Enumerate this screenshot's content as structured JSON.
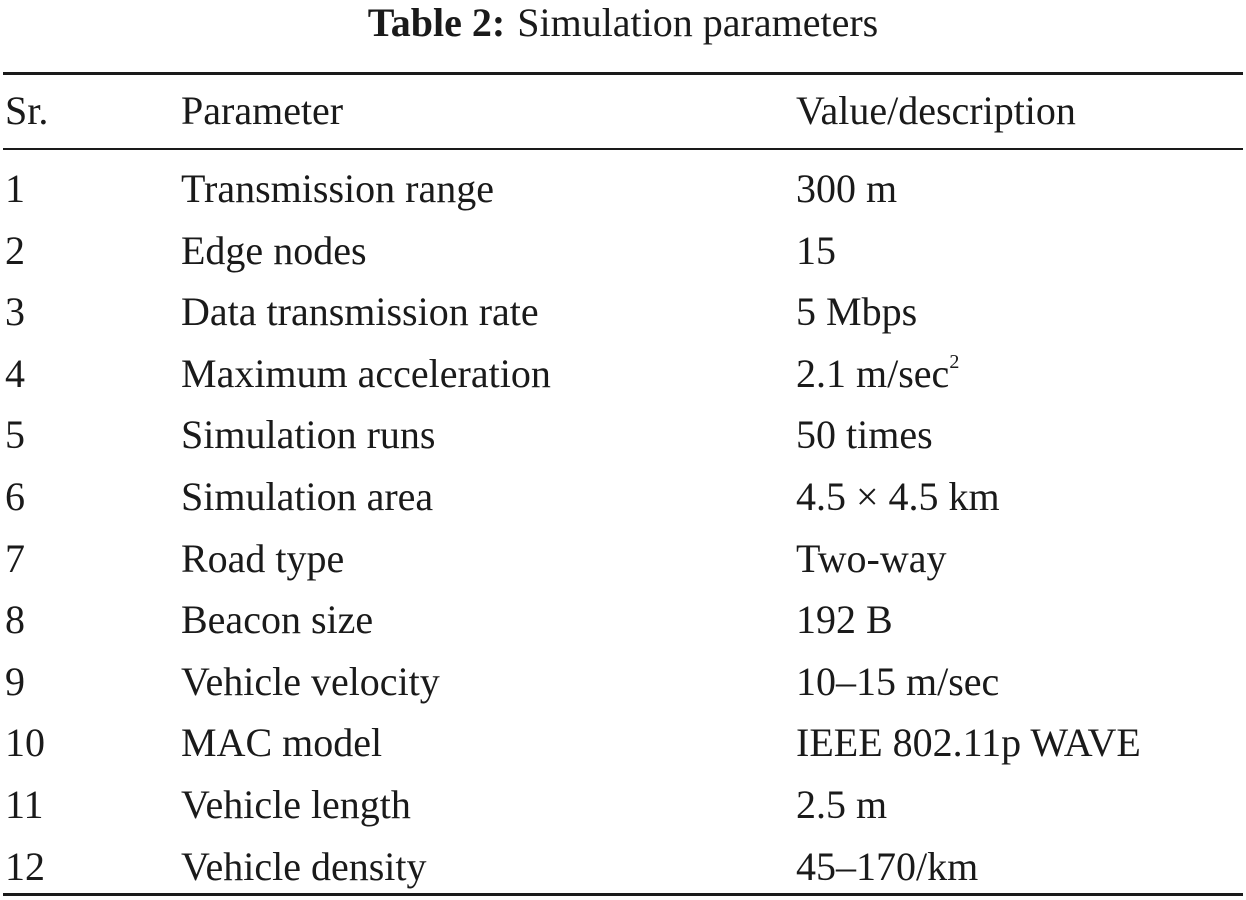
{
  "caption": {
    "label": "Table 2:",
    "title": "Simulation parameters"
  },
  "table": {
    "headers": {
      "sr": "Sr.",
      "parameter": "Parameter",
      "value": "Value/description"
    },
    "rows": [
      {
        "sr": "1",
        "parameter": "Transmission range",
        "value": "300 m"
      },
      {
        "sr": "2",
        "parameter": "Edge nodes",
        "value": "15"
      },
      {
        "sr": "3",
        "parameter": "Data transmission rate",
        "value": "5 Mbps"
      },
      {
        "sr": "4",
        "parameter": "Maximum acceleration",
        "value": "2.1 m/sec",
        "value_sup": "2"
      },
      {
        "sr": "5",
        "parameter": "Simulation runs",
        "value": "50 times"
      },
      {
        "sr": "6",
        "parameter": "Simulation area",
        "value": "4.5 × 4.5 km"
      },
      {
        "sr": "7",
        "parameter": "Road type",
        "value": "Two-way"
      },
      {
        "sr": "8",
        "parameter": "Beacon size",
        "value": "192 B"
      },
      {
        "sr": "9",
        "parameter": "Vehicle velocity",
        "value": "10–15 m/sec"
      },
      {
        "sr": "10",
        "parameter": "MAC model",
        "value": "IEEE 802.11p WAVE"
      },
      {
        "sr": "11",
        "parameter": "Vehicle length",
        "value": "2.5 m"
      },
      {
        "sr": "12",
        "parameter": "Vehicle density",
        "value": "45–170/km"
      }
    ]
  }
}
